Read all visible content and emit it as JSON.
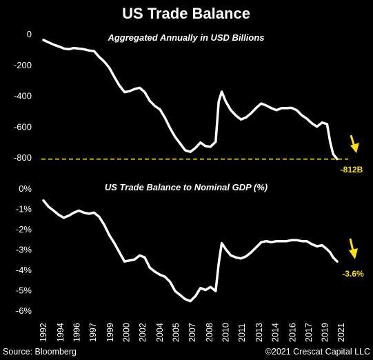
{
  "title": "US Trade Balance",
  "footer": {
    "source": "Source: Bloomberg",
    "copyright": "©2021 Crescat Capital LLC"
  },
  "colors": {
    "background": "#000000",
    "line": "#ffffff",
    "accent": "#ffe000"
  },
  "chart_data": [
    {
      "type": "line",
      "title": "Aggregated Annually in USD Billions",
      "xlabel": "",
      "ylabel": "",
      "ylim": [
        -800,
        0
      ],
      "yticks": [
        0,
        -200,
        -400,
        -600,
        -800
      ],
      "ytick_labels": [
        "0",
        "-200",
        "-400",
        "-600",
        "-800"
      ],
      "reference_line": {
        "value": -812,
        "style": "dashed",
        "color": "#ffe000"
      },
      "annotation": {
        "label": "-812B",
        "marker": "down-arrow",
        "color": "#ffe000"
      },
      "grid": false,
      "x": [
        1992.0,
        1992.5,
        1993.0,
        1993.5,
        1994.0,
        1994.5,
        1995.0,
        1995.5,
        1996.0,
        1996.5,
        1997.0,
        1997.5,
        1998.0,
        1998.5,
        1999.0,
        1999.5,
        2000.0,
        2000.5,
        2001.0,
        2001.5,
        2002.0,
        2002.5,
        2003.0,
        2003.5,
        2004.0,
        2004.5,
        2005.0,
        2005.5,
        2006.0,
        2006.5,
        2007.0,
        2007.5,
        2008.0,
        2008.5,
        2009.0,
        2009.3,
        2009.6,
        2010.0,
        2010.5,
        2011.0,
        2011.5,
        2012.0,
        2012.5,
        2013.0,
        2013.5,
        2014.0,
        2014.5,
        2015.0,
        2015.5,
        2016.0,
        2016.5,
        2017.0,
        2017.5,
        2018.0,
        2018.5,
        2019.0,
        2019.5,
        2020.0,
        2020.3,
        2020.6,
        2021.0
      ],
      "y": [
        -40,
        -55,
        -70,
        -82,
        -95,
        -100,
        -92,
        -96,
        -100,
        -108,
        -112,
        -150,
        -180,
        -220,
        -280,
        -335,
        -378,
        -372,
        -358,
        -350,
        -378,
        -435,
        -468,
        -490,
        -545,
        -612,
        -668,
        -712,
        -755,
        -765,
        -740,
        -705,
        -728,
        -732,
        -700,
        -440,
        -375,
        -440,
        -495,
        -530,
        -555,
        -542,
        -515,
        -480,
        -452,
        -465,
        -482,
        -495,
        -482,
        -482,
        -480,
        -495,
        -528,
        -550,
        -580,
        -602,
        -575,
        -585,
        -700,
        -780,
        -812
      ]
    },
    {
      "type": "line",
      "title": "US Trade Balance to Nominal GDP (%)",
      "xlabel": "",
      "ylabel": "",
      "ylim": [
        -6,
        0
      ],
      "yticks": [
        0,
        -1,
        -2,
        -3,
        -4,
        -5,
        -6
      ],
      "ytick_labels": [
        "0%",
        "-1%",
        "-2%",
        "-3%",
        "-4%",
        "-5%",
        "-6%"
      ],
      "annotation": {
        "label": "-3.6%",
        "marker": "down-arrow",
        "color": "#ffe000"
      },
      "grid": false,
      "x": [
        1992.0,
        1992.5,
        1993.0,
        1993.5,
        1994.0,
        1994.5,
        1995.0,
        1995.5,
        1996.0,
        1996.5,
        1997.0,
        1997.5,
        1998.0,
        1998.5,
        1999.0,
        1999.5,
        2000.0,
        2000.5,
        2001.0,
        2001.5,
        2002.0,
        2002.5,
        2003.0,
        2003.5,
        2004.0,
        2004.5,
        2005.0,
        2005.5,
        2006.0,
        2006.5,
        2007.0,
        2007.5,
        2008.0,
        2008.5,
        2009.0,
        2009.3,
        2009.6,
        2010.0,
        2010.5,
        2011.0,
        2011.5,
        2012.0,
        2012.5,
        2013.0,
        2013.5,
        2014.0,
        2014.5,
        2015.0,
        2015.5,
        2016.0,
        2016.5,
        2017.0,
        2017.5,
        2018.0,
        2018.5,
        2019.0,
        2019.5,
        2020.0,
        2020.3,
        2020.6,
        2021.0
      ],
      "y": [
        -0.6,
        -0.9,
        -1.1,
        -1.3,
        -1.45,
        -1.35,
        -1.2,
        -1.1,
        -1.2,
        -1.25,
        -1.2,
        -1.4,
        -1.8,
        -2.3,
        -2.7,
        -3.15,
        -3.6,
        -3.55,
        -3.5,
        -3.3,
        -3.4,
        -3.9,
        -4.1,
        -4.25,
        -4.35,
        -4.6,
        -5.05,
        -5.25,
        -5.45,
        -5.55,
        -5.3,
        -4.9,
        -5.0,
        -4.85,
        -5.05,
        -3.7,
        -2.7,
        -3.0,
        -3.3,
        -3.4,
        -3.45,
        -3.35,
        -3.15,
        -2.9,
        -2.65,
        -2.6,
        -2.65,
        -2.6,
        -2.6,
        -2.6,
        -2.55,
        -2.55,
        -2.6,
        -2.6,
        -2.75,
        -2.85,
        -2.8,
        -3.0,
        -3.15,
        -3.4,
        -3.6
      ]
    }
  ],
  "x_axis": {
    "tick_labels": [
      "1992",
      "1994",
      "1996",
      "1997",
      "1999",
      "2000",
      "2002",
      "2004",
      "2005",
      "2007",
      "2008",
      "2010",
      "2011",
      "2013",
      "2014",
      "2016",
      "2017",
      "2019",
      "2021"
    ],
    "tick_values": [
      1992.0,
      1993.7,
      1995.3,
      1996.9,
      1998.6,
      2000.2,
      2001.8,
      2003.5,
      2005.1,
      2006.7,
      2008.4,
      2010.0,
      2011.6,
      2013.3,
      2014.9,
      2016.6,
      2018.2,
      2019.8,
      2021.4
    ]
  }
}
